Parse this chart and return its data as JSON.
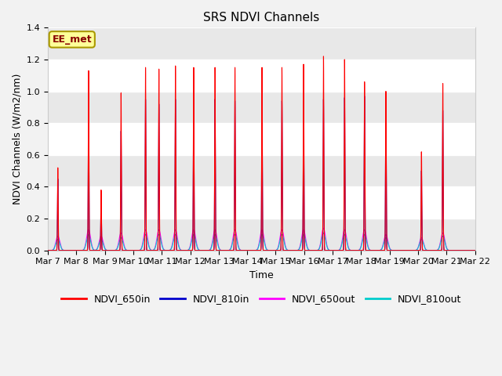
{
  "title": "SRS NDVI Channels",
  "xlabel": "Time",
  "ylabel": "NDVI Channels (W/m2/nm)",
  "ylim": [
    0.0,
    1.4
  ],
  "fig_bg": "#f2f2f2",
  "plot_bg": "#ffffff",
  "annotation_text": "EE_met",
  "annotation_bg": "#ffff99",
  "annotation_border": "#aa9900",
  "tick_labels": [
    "Mar 7",
    "Mar 8",
    "Mar 9",
    "Mar 10",
    "Mar 11",
    "Mar 12",
    "Mar 13",
    "Mar 14",
    "Mar 15",
    "Mar 16",
    "Mar 17",
    "Mar 18",
    "Mar 19",
    "Mar 20",
    "Mar 21",
    "Mar 22"
  ],
  "legend_entries": [
    "NDVI_650in",
    "NDVI_810in",
    "NDVI_650out",
    "NDVI_810out"
  ],
  "colors": {
    "NDVI_650in": "#ff0000",
    "NDVI_810in": "#0000cc",
    "NDVI_650out": "#ff00ff",
    "NDVI_810out": "#00cccc"
  },
  "day_peaks": [
    [
      7.35,
      0.52,
      0.45,
      0.09,
      0.07
    ],
    [
      8.43,
      1.13,
      0.91,
      0.13,
      0.1
    ],
    [
      8.87,
      0.38,
      0.32,
      0.09,
      0.07
    ],
    [
      9.57,
      0.99,
      0.75,
      0.11,
      0.08
    ],
    [
      10.43,
      1.15,
      0.95,
      0.13,
      0.1
    ],
    [
      10.9,
      1.14,
      0.92,
      0.13,
      0.1
    ],
    [
      11.48,
      1.16,
      0.95,
      0.13,
      0.1
    ],
    [
      12.12,
      1.15,
      0.95,
      0.13,
      0.1
    ],
    [
      12.87,
      1.15,
      0.95,
      0.13,
      0.1
    ],
    [
      13.57,
      1.15,
      0.94,
      0.13,
      0.1
    ],
    [
      14.52,
      1.15,
      0.94,
      0.13,
      0.1
    ],
    [
      15.22,
      1.15,
      0.94,
      0.13,
      0.1
    ],
    [
      15.98,
      1.17,
      0.94,
      0.13,
      0.1
    ],
    [
      16.68,
      1.22,
      0.95,
      0.14,
      0.11
    ],
    [
      17.42,
      1.2,
      0.96,
      0.13,
      0.1
    ],
    [
      18.12,
      1.06,
      0.97,
      0.13,
      0.1
    ],
    [
      18.87,
      1.0,
      0.97,
      0.1,
      0.08
    ],
    [
      20.12,
      0.62,
      0.5,
      0.08,
      0.07
    ],
    [
      20.87,
      1.05,
      0.88,
      0.11,
      0.09
    ]
  ]
}
